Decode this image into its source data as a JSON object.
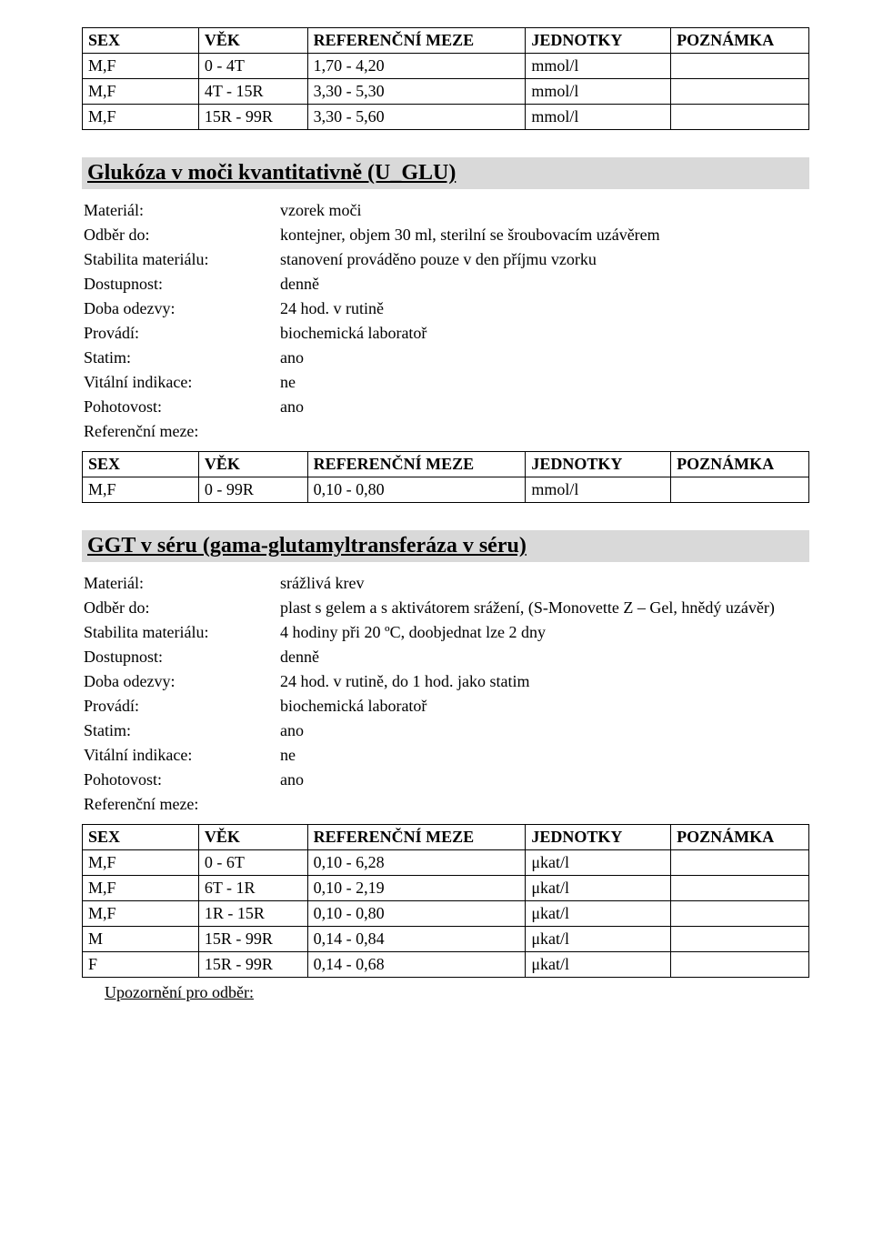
{
  "colors": {
    "section_bg": "#d9d9d9",
    "text": "#000000",
    "table_border": "#000000",
    "page_bg": "#ffffff"
  },
  "table_headers": {
    "sex": "SEX",
    "vek": "VĚK",
    "ref": "REFERENČNÍ MEZE",
    "units": "JEDNOTKY",
    "note": "POZNÁMKA"
  },
  "table1": {
    "rows": [
      {
        "sex": "M,F",
        "vek": "0 - 4T",
        "ref": "1,70 - 4,20",
        "units": "mmol/l",
        "note": ""
      },
      {
        "sex": "M,F",
        "vek": "4T - 15R",
        "ref": "3,30 - 5,30",
        "units": "mmol/l",
        "note": ""
      },
      {
        "sex": "M,F",
        "vek": "15R - 99R",
        "ref": "3,30 - 5,60",
        "units": "mmol/l",
        "note": ""
      }
    ]
  },
  "section2": {
    "title": "Glukóza v moči kvantitativně (U_GLU)",
    "kv": [
      {
        "key": "Materiál:",
        "val": "vzorek moči"
      },
      {
        "key": "Odběr do:",
        "val": "kontejner, objem 30 ml, sterilní se šroubovacím uzávěrem"
      },
      {
        "key": "Stabilita materiálu:",
        "val": "stanovení prováděno pouze v den příjmu vzorku"
      },
      {
        "key": "Dostupnost:",
        "val": "denně"
      },
      {
        "key": "Doba odezvy:",
        "val": "24 hod. v rutině"
      },
      {
        "key": "Provádí:",
        "val": "biochemická laboratoř"
      },
      {
        "key": "Statim:",
        "val": "ano"
      },
      {
        "key": "Vitální indikace:",
        "val": "ne"
      },
      {
        "key": "Pohotovost:",
        "val": "ano"
      },
      {
        "key": "Referenční meze:",
        "val": ""
      }
    ],
    "table": {
      "rows": [
        {
          "sex": "M,F",
          "vek": "0 - 99R",
          "ref": "0,10 - 0,80",
          "units": "mmol/l",
          "note": ""
        }
      ]
    }
  },
  "section3": {
    "title": "GGT v séru (gama-glutamyltransferáza v séru)",
    "kv": [
      {
        "key": "Materiál:",
        "val": "srážlivá krev"
      },
      {
        "key": "Odběr do:",
        "val": "plast s gelem a s aktivátorem srážení, (S-Monovette Z – Gel, hnědý uzávěr)"
      },
      {
        "key": "Stabilita materiálu:",
        "val": "4 hodiny při 20 ºC, doobjednat lze 2 dny"
      },
      {
        "key": "Dostupnost:",
        "val": "denně"
      },
      {
        "key": "Doba odezvy:",
        "val": "24 hod. v rutině, do 1 hod. jako statim"
      },
      {
        "key": "Provádí:",
        "val": "biochemická laboratoř"
      },
      {
        "key": "Statim:",
        "val": "ano"
      },
      {
        "key": "Vitální indikace:",
        "val": "ne"
      },
      {
        "key": "Pohotovost:",
        "val": "ano"
      },
      {
        "key": "Referenční meze:",
        "val": ""
      }
    ],
    "table": {
      "rows": [
        {
          "sex": "M,F",
          "vek": "0 - 6T",
          "ref": "0,10 - 6,28",
          "units": "μkat/l",
          "note": ""
        },
        {
          "sex": "M,F",
          "vek": "6T - 1R",
          "ref": "0,10 - 2,19",
          "units": "μkat/l",
          "note": ""
        },
        {
          "sex": "M,F",
          "vek": "1R - 15R",
          "ref": "0,10 - 0,80",
          "units": "μkat/l",
          "note": ""
        },
        {
          "sex": "M",
          "vek": "15R - 99R",
          "ref": "0,14 - 0,84",
          "units": "μkat/l",
          "note": ""
        },
        {
          "sex": "F",
          "vek": "15R - 99R",
          "ref": "0,14 - 0,68",
          "units": "μkat/l",
          "note": ""
        }
      ]
    }
  },
  "final_note": "Upozornění pro odběr:"
}
